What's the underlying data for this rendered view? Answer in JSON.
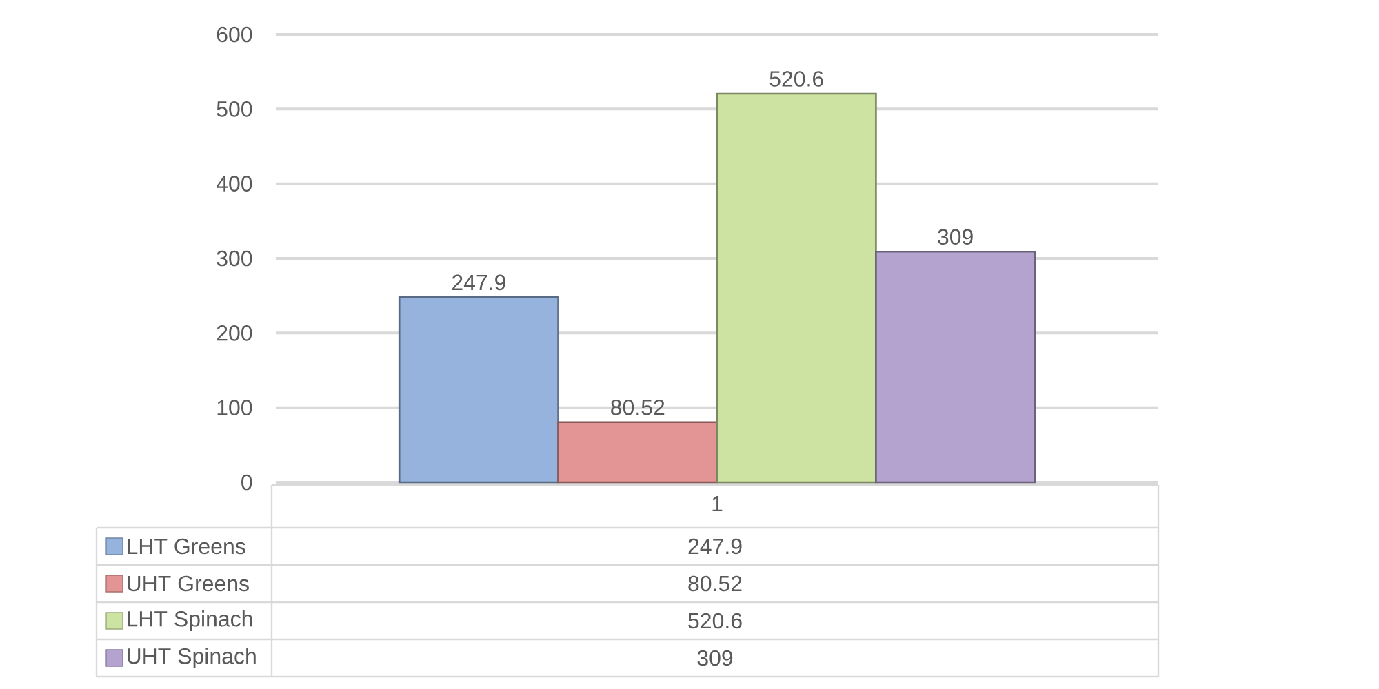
{
  "chart_data": {
    "type": "bar",
    "categories": [
      "1"
    ],
    "series": [
      {
        "name": "LHT Greens",
        "color": "#95b3dc",
        "values": [
          247.9
        ],
        "value_labels": [
          "247.9"
        ]
      },
      {
        "name": "UHT Greens",
        "color": "#e39494",
        "values": [
          80.52
        ],
        "value_labels": [
          "80.52"
        ]
      },
      {
        "name": "LHT Spinach",
        "color": "#cde3a2",
        "values": [
          520.6
        ],
        "value_labels": [
          "520.6"
        ]
      },
      {
        "name": "UHT Spinach",
        "color": "#b5a3cf",
        "values": [
          309
        ],
        "value_labels": [
          "309"
        ]
      }
    ],
    "ylim": [
      0,
      600
    ],
    "yticks": [
      0,
      100,
      200,
      300,
      400,
      500,
      600
    ],
    "grid": "y",
    "legend": "bottom"
  }
}
